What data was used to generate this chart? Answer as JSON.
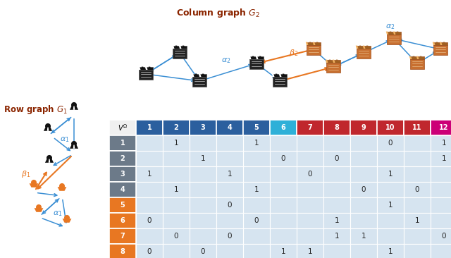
{
  "col_headers": [
    "VΩ",
    "1",
    "2",
    "3",
    "4",
    "5",
    "6",
    "7",
    "8",
    "9",
    "10",
    "11",
    "12"
  ],
  "row_headers": [
    "1",
    "2",
    "3",
    "4",
    "5",
    "6",
    "7",
    "8"
  ],
  "matrix": [
    [
      null,
      "1",
      null,
      null,
      "1",
      null,
      null,
      null,
      null,
      "0",
      null,
      "1"
    ],
    [
      null,
      null,
      "1",
      null,
      null,
      "0",
      null,
      "0",
      null,
      null,
      null,
      "1"
    ],
    [
      "1",
      null,
      null,
      "1",
      null,
      null,
      "0",
      null,
      null,
      "1",
      null,
      null
    ],
    [
      null,
      "1",
      null,
      null,
      "1",
      null,
      null,
      null,
      "0",
      null,
      "0",
      null
    ],
    [
      null,
      null,
      null,
      "0",
      null,
      null,
      null,
      null,
      null,
      "1",
      null,
      null
    ],
    [
      "0",
      null,
      null,
      null,
      "0",
      null,
      null,
      "1",
      null,
      null,
      "1",
      null
    ],
    [
      null,
      "0",
      null,
      "0",
      null,
      null,
      null,
      "1",
      "1",
      null,
      null,
      "0"
    ],
    [
      "0",
      null,
      "0",
      null,
      null,
      "1",
      "1",
      null,
      null,
      "1",
      null,
      null
    ]
  ],
  "col_colors": [
    "#f0f0f0",
    "#2b5f9e",
    "#2b5f9e",
    "#2b5f9e",
    "#2b5f9e",
    "#2b5f9e",
    "#2eb0d8",
    "#c0272d",
    "#c0272d",
    "#c0272d",
    "#c0272d",
    "#c0272d",
    "#cc0077"
  ],
  "row_colors": [
    "#6c7a89",
    "#6c7a89",
    "#6c7a89",
    "#6c7a89",
    "#e87722",
    "#e87722",
    "#e87722",
    "#e87722"
  ],
  "cell_bg": "#d6e4f0",
  "title_col_color": "#8B2500",
  "title_row_color": "#8B2500",
  "blue_arrow": "#3b8fd4",
  "orange_arrow": "#e87722",
  "fig_w": 6.4,
  "fig_h": 3.66
}
